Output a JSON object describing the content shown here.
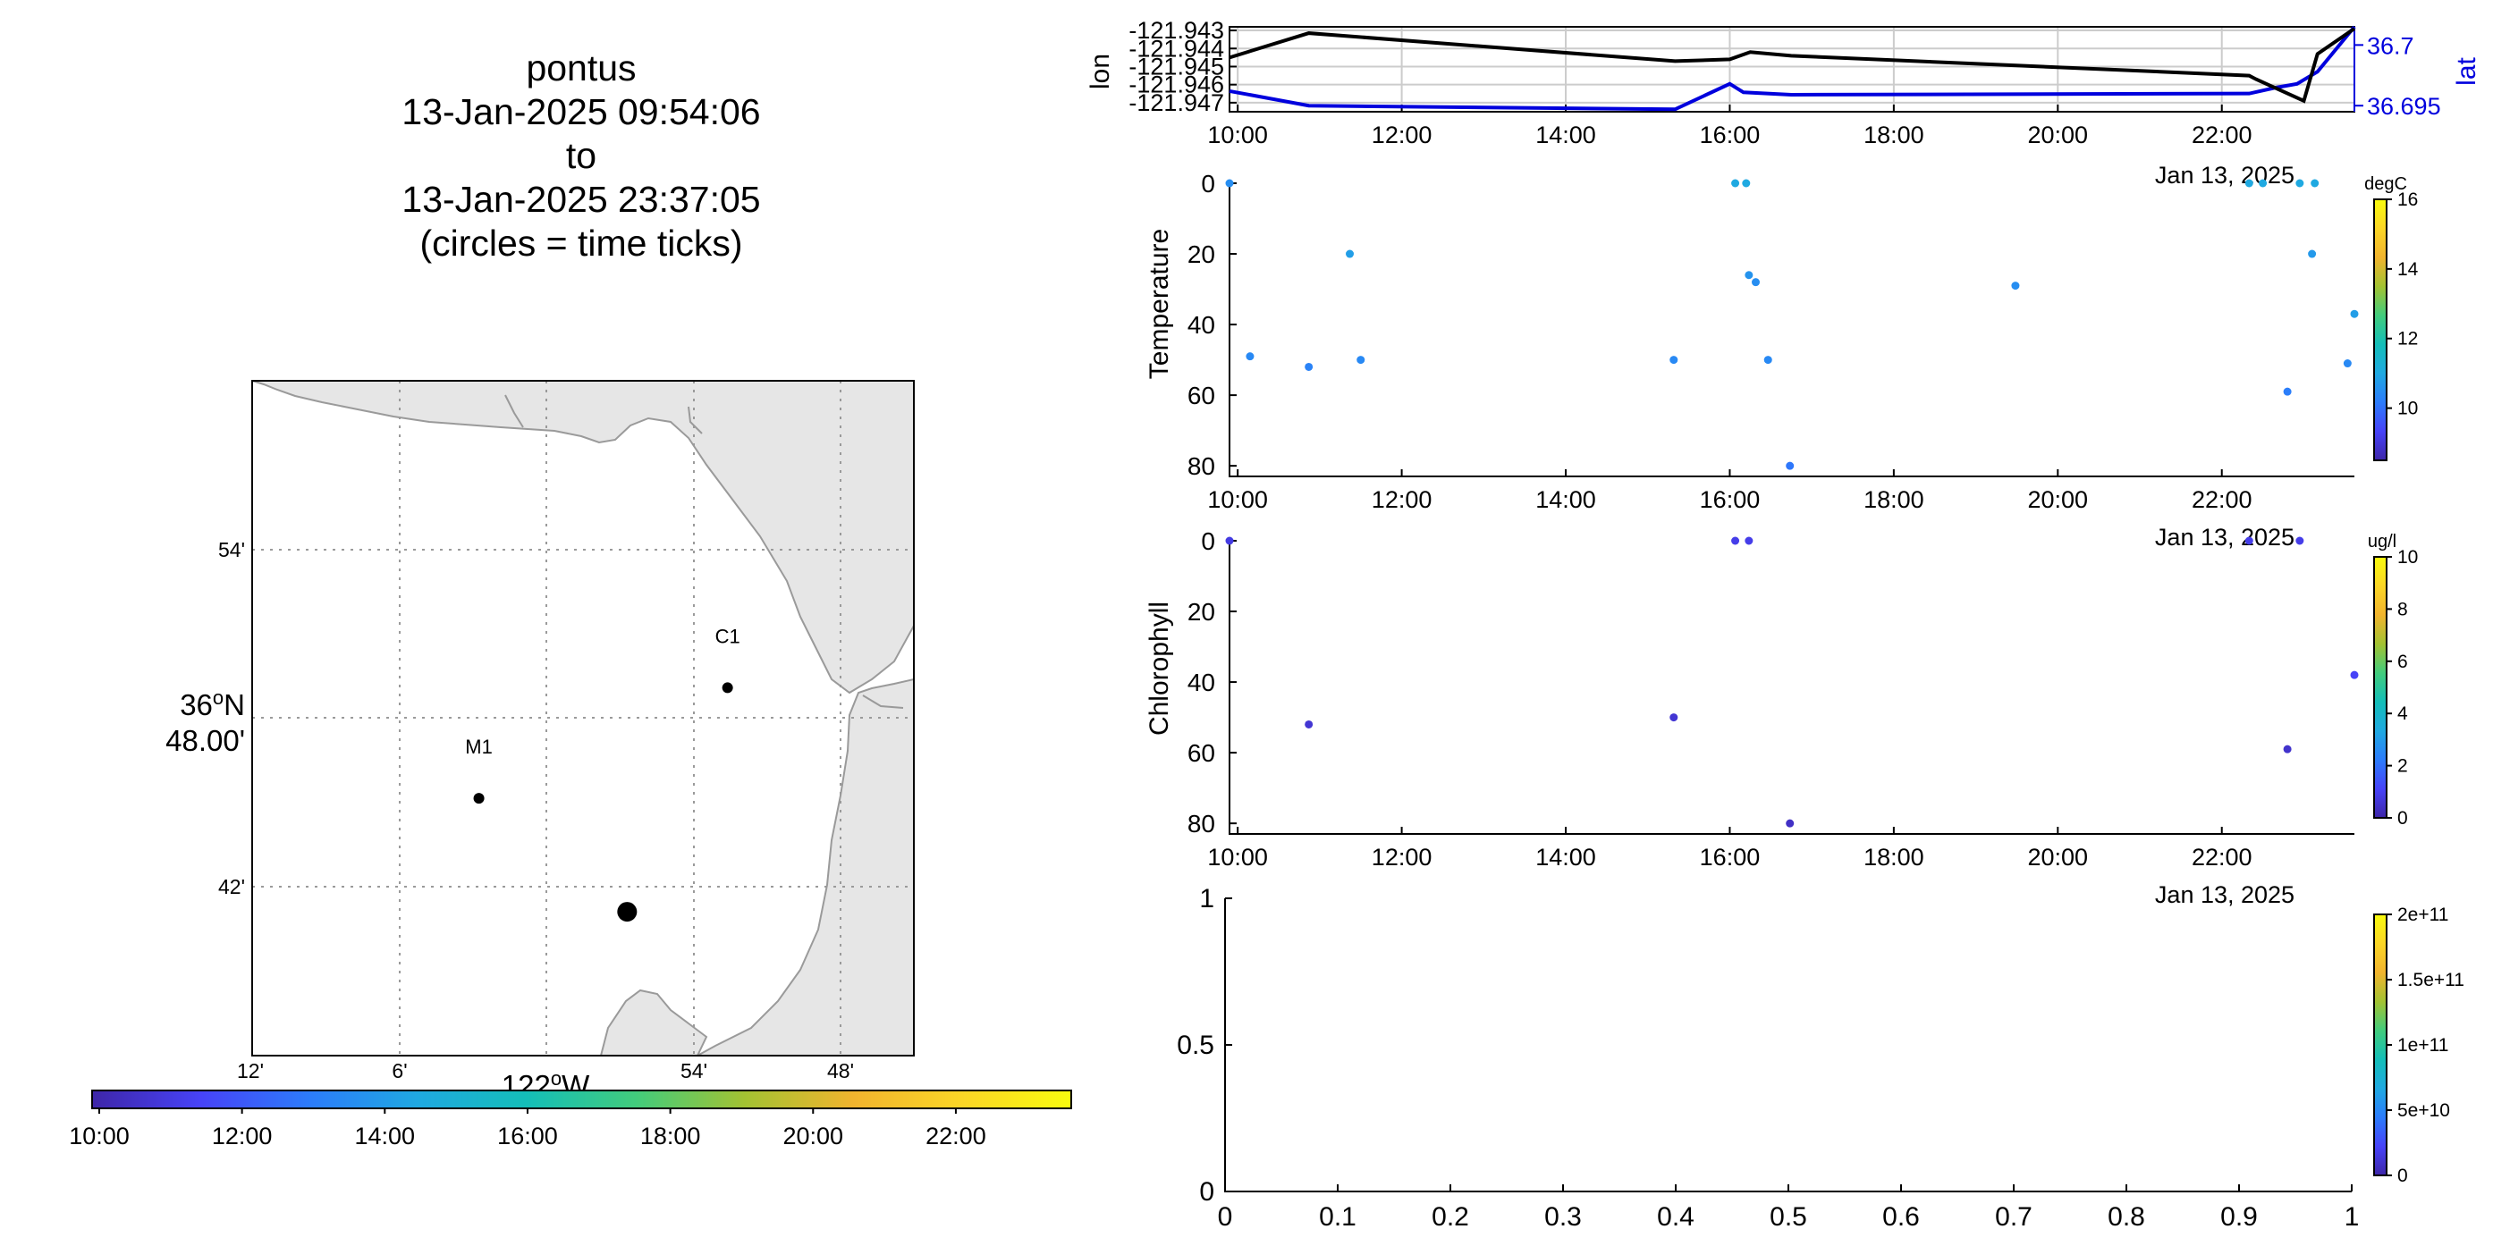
{
  "title_block": {
    "platform": "pontus",
    "start": "13-Jan-2025 09:54:06",
    "to": "to",
    "end": "13-Jan-2025 23:37:05",
    "note": "(circles = time ticks)"
  },
  "colors": {
    "lon_line": "#000000",
    "lat_line": "#0000dd",
    "land": "#e6e6e6",
    "grid": "#cccccc",
    "temperature_marker": "#2f8fe0",
    "chlorophyll_marker": "#3b3fd6",
    "colormap": [
      "#3e26a8",
      "#4743f8",
      "#2c7cfb",
      "#1fa9e1",
      "#14beb8",
      "#42cc7c",
      "#a3c232",
      "#f1b42e",
      "#fbd626",
      "#f9fb0e"
    ]
  },
  "map": {
    "lat_labels": [
      "54'",
      "36°N 48.00'",
      "42'"
    ],
    "lat_top": "36",
    "lat_top_sup": "o",
    "lat_top_suffix": "N",
    "lat_mid_second": "48.00'",
    "lon_labels": [
      "12'",
      "6'",
      "54'",
      "48'"
    ],
    "lon_main": "122",
    "lon_sup": "o",
    "lon_suffix": "W",
    "stations": [
      {
        "name": "M1",
        "lon": -122.0458,
        "lat": 36.7475
      },
      {
        "name": "C1",
        "lon": -121.8767,
        "lat": 36.7967
      }
    ],
    "track_point": {
      "lon": -121.945,
      "lat": 36.697
    },
    "time_colorbar_ticks": [
      "10:00",
      "12:00",
      "14:00",
      "16:00",
      "18:00",
      "20:00",
      "22:00"
    ]
  },
  "chart_data": [
    {
      "type": "line",
      "name": "navigation",
      "ylabel_left": "lon",
      "ylabel_right": "lat",
      "left_tick_labels": [
        "-121.943",
        "-121.944",
        "-121.945",
        "-121.946",
        "-121.947"
      ],
      "right_tick_labels": [
        "36.7",
        "36.695"
      ],
      "x_tick_labels": [
        "10:00",
        "12:00",
        "14:00",
        "16:00",
        "18:00",
        "20:00",
        "22:00"
      ],
      "date_label": "Jan 13, 2025",
      "xlim": [
        "09:54",
        "23:37"
      ],
      "ylim_left": [
        -121.9475,
        -121.9428
      ],
      "ylim_right": [
        36.6945,
        36.7015
      ],
      "series": [
        {
          "name": "lon",
          "x": [
            "09:54",
            "10:52",
            "15:20",
            "16:00",
            "16:15",
            "16:45",
            "22:20",
            "22:25",
            "23:00",
            "23:10",
            "23:37"
          ],
          "y": [
            -121.9445,
            -121.94315,
            -121.9447,
            -121.9446,
            -121.9442,
            -121.9444,
            -121.9455,
            -121.9457,
            -121.9469,
            -121.9443,
            -121.9429
          ]
        },
        {
          "name": "lat",
          "x": [
            "09:54",
            "10:52",
            "15:20",
            "16:00",
            "16:10",
            "16:45",
            "22:20",
            "22:40",
            "22:55",
            "23:10",
            "23:37"
          ],
          "y": [
            36.6962,
            36.695,
            36.6947,
            36.6968,
            36.6961,
            36.6959,
            36.696,
            36.6965,
            36.6968,
            36.6978,
            36.7015
          ]
        }
      ]
    },
    {
      "type": "scatter",
      "name": "temperature",
      "ylabel": "Temperature",
      "y_tick_labels": [
        "0",
        "20",
        "40",
        "60",
        "80"
      ],
      "x_tick_labels": [
        "10:00",
        "12:00",
        "14:00",
        "16:00",
        "18:00",
        "20:00",
        "22:00"
      ],
      "date_label": "Jan 13, 2025",
      "ylim": [
        83,
        0
      ],
      "colorbar_unit": "degC",
      "colorbar_ticks": [
        "16",
        "14",
        "12",
        "10"
      ],
      "clim": [
        8.5,
        16
      ],
      "x": [
        "09:54",
        "10:09",
        "10:52",
        "11:22",
        "11:30",
        "15:19",
        "16:04",
        "16:12",
        "16:14",
        "16:19",
        "16:28",
        "16:44",
        "19:29",
        "22:20",
        "22:30",
        "22:48",
        "22:57",
        "23:06",
        "23:08",
        "23:32",
        "23:37"
      ],
      "y": [
        0,
        49,
        52,
        20,
        50,
        50,
        0,
        0,
        26,
        28,
        50,
        80,
        29,
        0,
        0,
        59,
        0,
        20,
        0,
        51,
        37
      ],
      "values": [
        10.5,
        10.4,
        10.3,
        10.8,
        10.4,
        10.4,
        11.0,
        11.0,
        10.6,
        10.5,
        10.4,
        10.1,
        10.5,
        11.0,
        11.0,
        10.2,
        11.0,
        10.7,
        11.0,
        10.4,
        10.8
      ]
    },
    {
      "type": "scatter",
      "name": "chlorophyll",
      "ylabel": "Chlorophyll",
      "y_tick_labels": [
        "0",
        "20",
        "40",
        "60",
        "80"
      ],
      "x_tick_labels": [
        "10:00",
        "12:00",
        "14:00",
        "16:00",
        "18:00",
        "20:00",
        "22:00"
      ],
      "date_label": "Jan 13, 2025",
      "ylim": [
        83,
        0
      ],
      "colorbar_unit": "ug/l",
      "colorbar_ticks": [
        "10",
        "8",
        "6",
        "4",
        "2",
        "0"
      ],
      "clim": [
        0,
        10
      ],
      "x": [
        "09:54",
        "10:52",
        "15:19",
        "16:04",
        "16:14",
        "16:44",
        "22:20",
        "22:48",
        "22:57",
        "23:37"
      ],
      "y": [
        0,
        52,
        50,
        0,
        0,
        80,
        0,
        59,
        0,
        38
      ],
      "values": [
        0.8,
        0.6,
        0.6,
        0.9,
        0.9,
        0.4,
        0.9,
        0.5,
        0.9,
        1.1
      ]
    },
    {
      "type": "scatter",
      "name": "empty",
      "xlim": [
        0,
        1
      ],
      "ylim": [
        0,
        1
      ],
      "x_tick_labels": [
        "0",
        "0.1",
        "0.2",
        "0.3",
        "0.4",
        "0.5",
        "0.6",
        "0.7",
        "0.8",
        "0.9",
        "1"
      ],
      "y_tick_labels": [
        "1",
        "0.5",
        "0"
      ],
      "colorbar_ticks": [
        "2e+11",
        "1.5e+11",
        "1e+11",
        "5e+10",
        "0"
      ],
      "clim": [
        0,
        200000000000
      ],
      "x": [],
      "y": []
    }
  ]
}
